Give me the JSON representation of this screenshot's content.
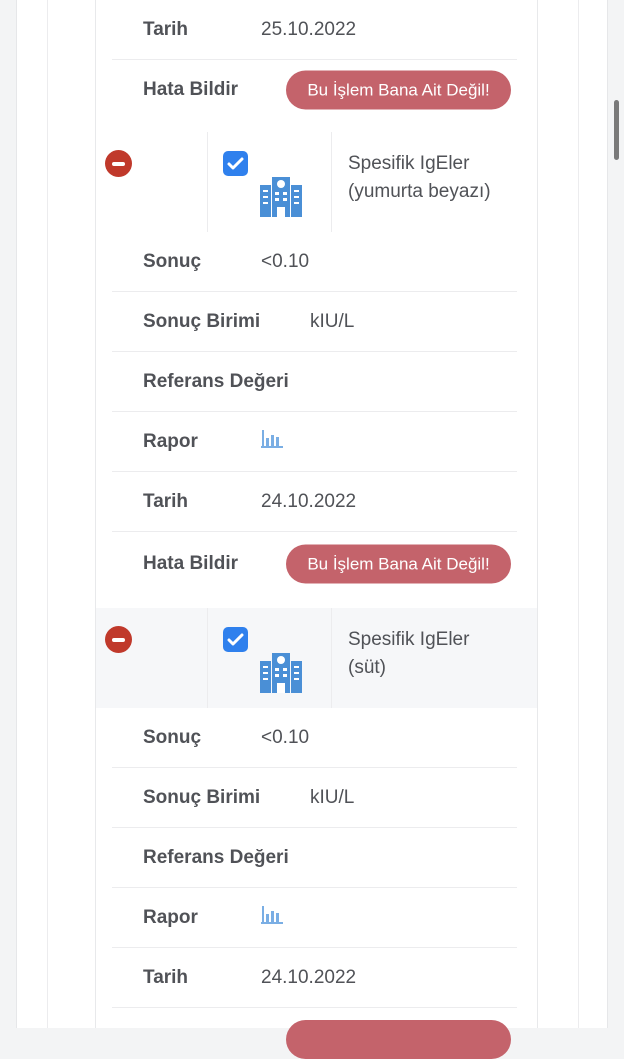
{
  "top": {
    "date_label": "Tarih",
    "date_value": "25.10.2022",
    "error_label": "Hata Bildir",
    "error_button": "Bu İşlem Bana Ait Değil!"
  },
  "items": [
    {
      "title_line1": "Spesifik IgEler",
      "title_line2": "(yumurta beyazı)",
      "checked": true,
      "result_label": "Sonuç",
      "result_value": "<0.10",
      "unit_label": "Sonuç Birimi",
      "unit_value": "kIU/L",
      "ref_label": "Referans Değeri",
      "report_label": "Rapor",
      "report_icon": "bar-chart-icon",
      "date_label": "Tarih",
      "date_value": "24.10.2022",
      "error_label": "Hata Bildir",
      "error_button": "Bu İşlem Bana Ait Değil!"
    },
    {
      "title_line1": "Spesifik IgEler",
      "title_line2": "(süt)",
      "checked": true,
      "result_label": "Sonuç",
      "result_value": "<0.10",
      "unit_label": "Sonuç Birimi",
      "unit_value": "kIU/L",
      "ref_label": "Referans Değeri",
      "report_label": "Rapor",
      "report_icon": "bar-chart-icon",
      "date_label": "Tarih",
      "date_value": "24.10.2022"
    }
  ],
  "colors": {
    "remove": "#c0392b",
    "checkbox": "#2f80ed",
    "button": "#c4636b",
    "icon": "#4a8fd6"
  }
}
